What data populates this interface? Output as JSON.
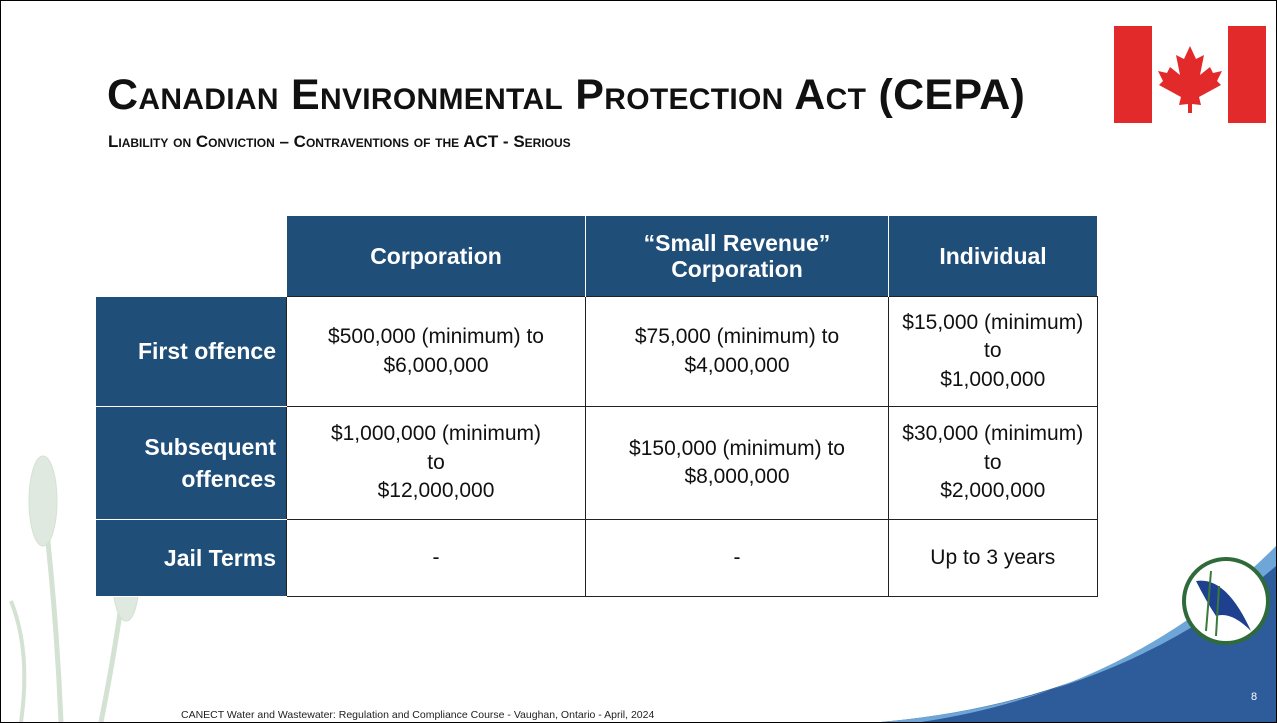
{
  "header": {
    "title": "Canadian Environmental Protection Act (CEPA)",
    "subtitle": "Liability on Conviction – Contraventions of the ACT - Serious"
  },
  "table": {
    "columns": [
      "Corporation",
      "“Small Revenue” Corporation",
      "Individual"
    ],
    "rows": [
      [
        "First offence",
        "$500,000 (minimum) to\n$6,000,000",
        "$75,000 (minimum) to\n$4,000,000",
        "$15,000 (minimum)\nto\n$1,000,000"
      ],
      [
        "Subsequent offences",
        "$1,000,000 (minimum)\nto\n$12,000,000",
        "$150,000 (minimum) to\n$8,000,000",
        "$30,000 (minimum)\nto\n$2,000,000"
      ],
      [
        "Jail Terms",
        "-",
        "-",
        "Up to 3 years"
      ]
    ]
  },
  "footer": {
    "text": "CANECT Water and Wastewater: Regulation and Compliance Course - Vaughan, Ontario - April, 2024",
    "page_number": "8"
  }
}
